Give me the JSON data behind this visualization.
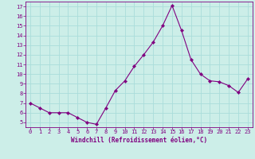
{
  "x": [
    0,
    1,
    2,
    3,
    4,
    5,
    6,
    7,
    8,
    9,
    10,
    11,
    12,
    13,
    14,
    15,
    16,
    17,
    18,
    19,
    20,
    21,
    22,
    23
  ],
  "y": [
    7.0,
    6.5,
    6.0,
    6.0,
    6.0,
    5.5,
    5.0,
    4.8,
    6.5,
    8.3,
    9.3,
    10.8,
    12.0,
    13.3,
    15.0,
    17.1,
    14.5,
    11.5,
    10.0,
    9.3,
    9.2,
    8.8,
    8.1,
    9.5
  ],
  "line_color": "#800080",
  "marker": "D",
  "marker_size": 2.2,
  "bg_color": "#cceee8",
  "grid_color": "#aaddda",
  "tick_color": "#800080",
  "label_color": "#800080",
  "xlabel": "Windchill (Refroidissement éolien,°C)",
  "ylim": [
    4.5,
    17.5
  ],
  "xlim": [
    -0.5,
    23.5
  ],
  "yticks": [
    5,
    6,
    7,
    8,
    9,
    10,
    11,
    12,
    13,
    14,
    15,
    16,
    17
  ],
  "xticks": [
    0,
    1,
    2,
    3,
    4,
    5,
    6,
    7,
    8,
    9,
    10,
    11,
    12,
    13,
    14,
    15,
    16,
    17,
    18,
    19,
    20,
    21,
    22,
    23
  ],
  "tick_fontsize": 5.0,
  "xlabel_fontsize": 5.5,
  "linewidth": 0.8
}
